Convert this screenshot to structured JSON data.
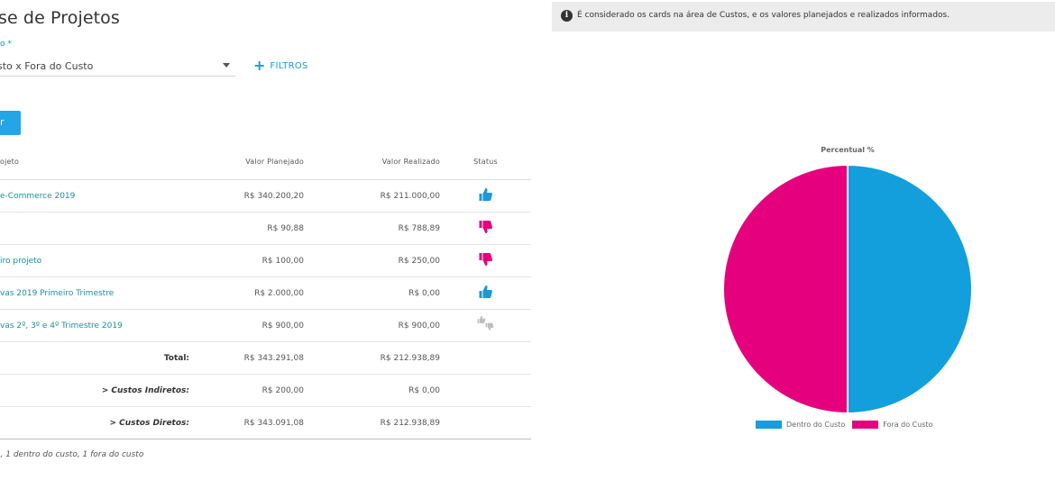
{
  "page": {
    "title": "se de Projetos"
  },
  "filter": {
    "select_label": "o *",
    "select_value": "sto x Fora do Custo",
    "filters_button": "FILTROS"
  },
  "action_button": {
    "label": "r"
  },
  "table": {
    "headers": {
      "name": "ojeto",
      "planned": "Valor Planejado",
      "realized": "Valor Realizado",
      "status": "Status"
    },
    "rows": [
      {
        "name": "e-Commerce 2019",
        "planned": "R$ 340.200,20",
        "realized": "R$ 211.000,00",
        "status": "thumbs-up",
        "status_color": "#1a9ad6"
      },
      {
        "name": "",
        "planned": "R$ 90,88",
        "realized": "R$ 788,89",
        "status": "thumbs-down",
        "status_color": "#e5007d"
      },
      {
        "name": "iro projeto",
        "planned": "R$ 100,00",
        "realized": "R$ 250,00",
        "status": "thumbs-down",
        "status_color": "#e5007d"
      },
      {
        "name": "vas 2019 Primeiro Trimestre",
        "planned": "R$ 2.000,00",
        "realized": "R$ 0,00",
        "status": "thumbs-up",
        "status_color": "#1a9ad6"
      },
      {
        "name": "vas 2º, 3º e 4º Trimestre 2019",
        "planned": "R$ 900,00",
        "realized": "R$ 900,00",
        "status": "thumbs-neutral",
        "status_color": "#bdbdbd"
      }
    ],
    "summary": [
      {
        "label": "Total:",
        "planned": "R$ 343.291,08",
        "realized": "R$ 212.938,89",
        "italic": false
      },
      {
        "label": "> Custos Indiretos:",
        "planned": "R$ 200,00",
        "realized": "R$ 0,00",
        "italic": true
      },
      {
        "label": "> Custos Diretos:",
        "planned": "R$ 343.091,08",
        "realized": "R$ 212.938,89",
        "italic": true
      }
    ],
    "footnote": "), 1 dentro do custo, 1 fora do custo"
  },
  "info": {
    "icon": "info-icon",
    "text": "É considerado os cards na área de Custos, e os valores planejados e realizados informados."
  },
  "colors": {
    "accent": "#1a9ad6",
    "dentro": "#129fdb",
    "fora": "#e5007d"
  },
  "chart_data": {
    "type": "pie",
    "title": "Percentual %",
    "categories": [
      "Dentro do Custo",
      "Fora do Custo"
    ],
    "values": [
      50,
      50
    ],
    "colors": [
      "#129fdb",
      "#e5007d"
    ],
    "legend": "bottom"
  }
}
